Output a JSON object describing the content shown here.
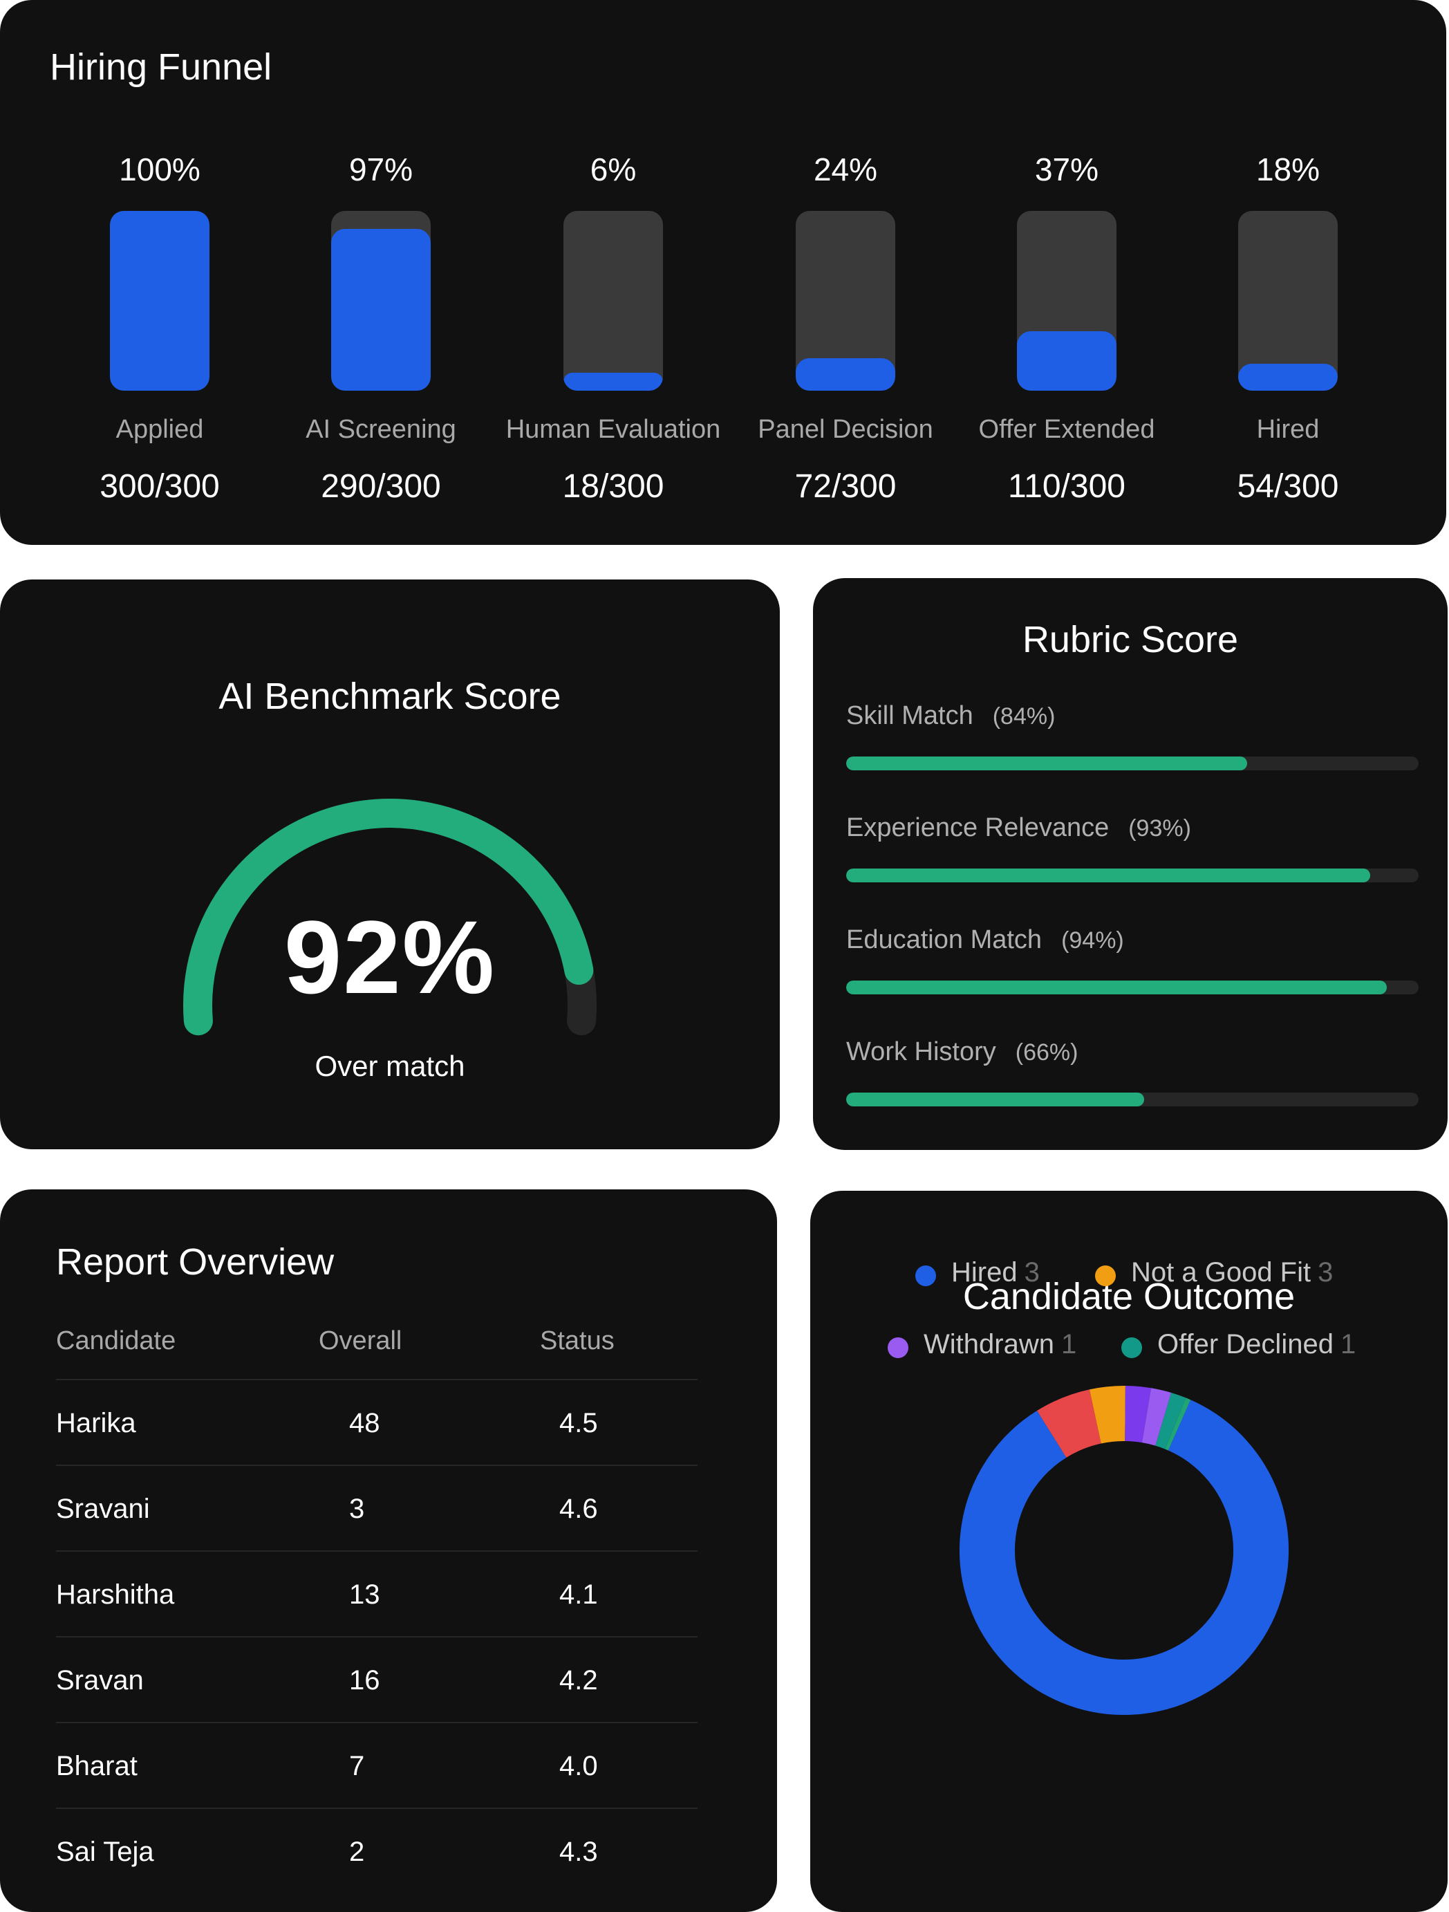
{
  "funnel": {
    "title": "Hiring Funnel",
    "stages": [
      {
        "pct": "100%",
        "label": "Applied",
        "count": "300/300",
        "fill": 1.0
      },
      {
        "pct": "97%",
        "label": "AI Screening",
        "count": "290/300",
        "fill": 0.9
      },
      {
        "pct": "6%",
        "label": "Human Evaluation",
        "count": "18/300",
        "fill": 0.1
      },
      {
        "pct": "24%",
        "label": "Panel Decision",
        "count": "72/300",
        "fill": 0.18
      },
      {
        "pct": "37%",
        "label": "Offer Extended",
        "count": "110/300",
        "fill": 0.33
      },
      {
        "pct": "18%",
        "label": "Hired",
        "count": "54/300",
        "fill": 0.15
      }
    ],
    "colors": {
      "fill": "#1f5fe6",
      "track": "#3a3a3a"
    }
  },
  "benchmark": {
    "title": "AI Benchmark Score",
    "value_text": "92%",
    "value": 92,
    "caption": "Over match",
    "colors": {
      "arc": "#23ad7c",
      "track": "#262626"
    }
  },
  "rubric": {
    "title": "Rubric Score",
    "items": [
      {
        "label": "Skill Match",
        "pct_text": "(84%)",
        "fill": 0.7
      },
      {
        "label": "Experience Relevance",
        "pct_text": "(93%)",
        "fill": 0.915
      },
      {
        "label": "Education Match",
        "pct_text": "(94%)",
        "fill": 0.945
      },
      {
        "label": "Work History",
        "pct_text": "(66%)",
        "fill": 0.52
      }
    ]
  },
  "report": {
    "title": "Report Overview",
    "columns": [
      "Candidate",
      "Overall",
      "Status"
    ],
    "rows": [
      {
        "candidate": "Harika",
        "overall": "48",
        "status": "4.5"
      },
      {
        "candidate": "Sravani",
        "overall": "3",
        "status": "4.6"
      },
      {
        "candidate": "Harshitha",
        "overall": "13",
        "status": "4.1"
      },
      {
        "candidate": "Sravan",
        "overall": "16",
        "status": "4.2"
      },
      {
        "candidate": "Bharat",
        "overall": "7",
        "status": "4.0"
      },
      {
        "candidate": "Sai Teja",
        "overall": "2",
        "status": "4.3"
      }
    ]
  },
  "outcome": {
    "title": "Candidate Outcome",
    "segments": [
      {
        "name": "blue",
        "color": "#1f5fe6",
        "value": 84.5
      },
      {
        "name": "red",
        "color": "#e8474a",
        "value": 5.5
      },
      {
        "name": "orange",
        "color": "#f29e12",
        "value": 3.5
      },
      {
        "name": "purple",
        "color": "#7c3aed",
        "value": 2.5
      },
      {
        "name": "violet",
        "color": "#9a5cf0",
        "value": 2.0
      },
      {
        "name": "teal",
        "color": "#139987",
        "value": 1.5
      },
      {
        "name": "green",
        "color": "#1fa578",
        "value": 0.5
      }
    ],
    "legend": [
      {
        "label": "Hired",
        "count": "3",
        "color": "#1f5fe6"
      },
      {
        "label": "Not a Good Fit",
        "count": "3",
        "color": "#f29e12"
      },
      {
        "label": "Withdrawn",
        "count": "1",
        "color": "#9a5cf0"
      },
      {
        "label": "Offer Declined",
        "count": "1",
        "color": "#139987"
      }
    ]
  }
}
